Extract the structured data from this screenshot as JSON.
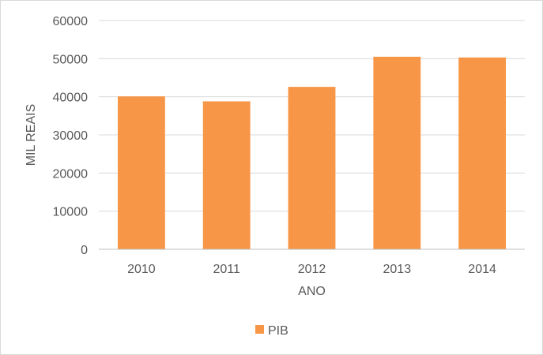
{
  "chart_data": {
    "type": "bar",
    "categories": [
      "2010",
      "2011",
      "2012",
      "2013",
      "2014"
    ],
    "series": [
      {
        "name": "PIB",
        "values": [
          40100,
          38800,
          42600,
          50500,
          50300
        ]
      }
    ],
    "xlabel": "ANO",
    "ylabel": "MIL REAIS",
    "ylim": [
      0,
      60000
    ],
    "yticks": [
      "0",
      "10000",
      "20000",
      "30000",
      "40000",
      "50000",
      "60000"
    ],
    "grid": "horizontal",
    "legend": "bottom",
    "colors": {
      "bar": "#f79646",
      "grid": "#d9d9d9",
      "axis": "#bfbfbf",
      "text": "#595959"
    }
  }
}
